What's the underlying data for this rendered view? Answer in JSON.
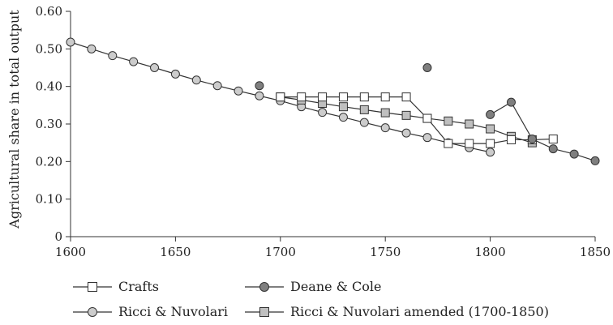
{
  "chart_data": {
    "type": "line",
    "title": "",
    "xlabel": "",
    "ylabel": "Agricultural share in total output",
    "xlim": [
      1600,
      1850
    ],
    "ylim": [
      0,
      0.6
    ],
    "x_ticks": [
      1600,
      1650,
      1700,
      1750,
      1800,
      1850
    ],
    "x_tick_labels": [
      "1600",
      "1650",
      "1700",
      "1750",
      "1800",
      "1850"
    ],
    "y_ticks": [
      0,
      0.1,
      0.2,
      0.3,
      0.4,
      0.5,
      0.6
    ],
    "y_tick_labels": [
      "0",
      "0.10",
      "0.20",
      "0.30",
      "0.40",
      "0.50",
      "0.60"
    ],
    "grid": false,
    "legend_position": "bottom",
    "series": [
      {
        "name": "Crafts",
        "marker": "square",
        "marker_fill": "#ffffff",
        "x": [
          1700,
          1710,
          1720,
          1730,
          1740,
          1750,
          1760,
          1770,
          1780,
          1790,
          1800,
          1810,
          1820,
          1830
        ],
        "y": [
          0.372,
          0.372,
          0.372,
          0.372,
          0.372,
          0.372,
          0.372,
          0.315,
          0.248,
          0.248,
          0.248,
          0.258,
          0.258,
          0.26
        ]
      },
      {
        "name": "Deane & Cole",
        "marker": "circle",
        "marker_fill": "#7f7f7f",
        "x": [
          1690,
          1770,
          1800,
          1810,
          1820,
          1830,
          1840,
          1850
        ],
        "y": [
          0.402,
          0.45,
          0.325,
          0.358,
          0.26,
          0.234,
          0.22,
          0.202
        ],
        "segments": [
          [
            0
          ],
          [
            1
          ],
          [
            2,
            3,
            4,
            5,
            6,
            7
          ]
        ]
      },
      {
        "name": "Ricci & Nuvolari",
        "marker": "circle",
        "marker_fill": "#cccccc",
        "x": [
          1600,
          1610,
          1620,
          1630,
          1640,
          1650,
          1660,
          1670,
          1680,
          1690,
          1700,
          1710,
          1720,
          1730,
          1740,
          1750,
          1760,
          1770,
          1780,
          1790,
          1800
        ],
        "y": [
          0.518,
          0.5,
          0.482,
          0.466,
          0.45,
          0.433,
          0.417,
          0.402,
          0.388,
          0.375,
          0.362,
          0.346,
          0.331,
          0.318,
          0.304,
          0.29,
          0.276,
          0.264,
          0.25,
          0.237,
          0.225
        ]
      },
      {
        "name": "Ricci & Nuvolari amended (1700-1850)",
        "marker": "square",
        "marker_fill": "#bfbfbf",
        "x": [
          1700,
          1710,
          1720,
          1730,
          1740,
          1750,
          1760,
          1770,
          1780,
          1790,
          1800,
          1810,
          1820
        ],
        "y": [
          0.372,
          0.364,
          0.355,
          0.346,
          0.338,
          0.33,
          0.323,
          0.315,
          0.308,
          0.3,
          0.287,
          0.267,
          0.25
        ]
      }
    ],
    "legend": [
      {
        "label": "Crafts",
        "series": 0
      },
      {
        "label": "Deane & Cole",
        "series": 1
      },
      {
        "label": "Ricci & Nuvolari",
        "series": 2
      },
      {
        "label": "Ricci & Nuvolari amended (1700-1850)",
        "series": 3
      }
    ]
  }
}
